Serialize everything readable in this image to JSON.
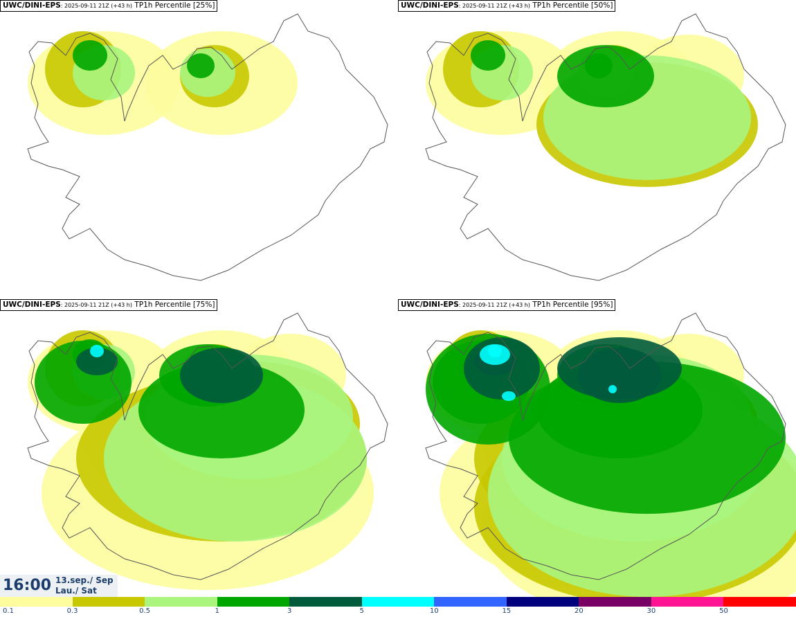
{
  "panels": [
    {
      "model": "UWC/DINI-EPS",
      "run": ": 2025-09-11 21Z (+43 h)",
      "product": " TP1h Percentile [25%]",
      "level": 0
    },
    {
      "model": "UWC/DINI-EPS",
      "run": ": 2025-09-11 21Z (+43 h)",
      "product": " TP1h Percentile [50%]",
      "level": 1
    },
    {
      "model": "UWC/DINI-EPS",
      "run": ": 2025-09-11 21Z (+43 h)",
      "product": " TP1h Percentile [75%]",
      "level": 2
    },
    {
      "model": "UWC/DINI-EPS",
      "run": ": 2025-09-11 21Z (+43 h)",
      "product": " TP1h Percentile [95%]",
      "level": 3
    }
  ],
  "time": {
    "clock": "16:00",
    "date": "13.sep./ Sep",
    "day": "Lau./ Sat"
  },
  "legend": {
    "ticks": [
      "0.1",
      "0.3",
      "0.5",
      "1",
      "3",
      "5",
      "10",
      "15",
      "20",
      "30",
      "50"
    ],
    "colors": [
      "#fdfd9e",
      "#c8c800",
      "#a9f57e",
      "#00a600",
      "#005a3c",
      "#00ffff",
      "#3264ff",
      "#00007d",
      "#780064",
      "#ff1493",
      "#ff0000"
    ]
  },
  "colors": {
    "coast": "#555555",
    "c1": "#fdfd9e",
    "c2": "#c8c800",
    "c3": "#a9f57e",
    "c4": "#00a600",
    "c5": "#005a3c",
    "c6": "#00ffff"
  }
}
